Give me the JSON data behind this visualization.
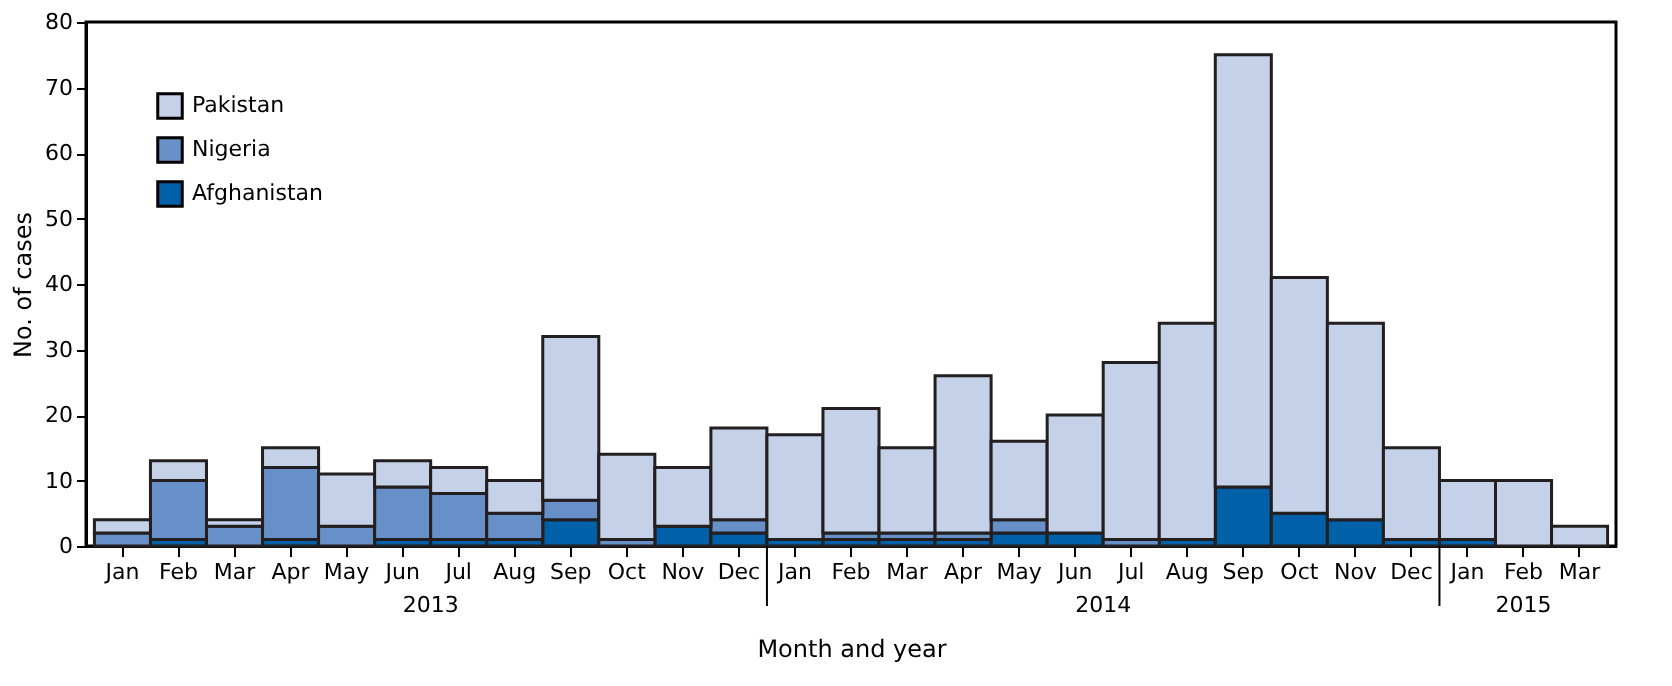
{
  "chart_data": {
    "type": "bar",
    "stacked": true,
    "xlabel": "Month and year",
    "ylabel": "No. of cases",
    "categories": [
      "Jan",
      "Feb",
      "Mar",
      "Apr",
      "May",
      "Jun",
      "Jul",
      "Aug",
      "Sep",
      "Oct",
      "Nov",
      "Dec",
      "Jan",
      "Feb",
      "Mar",
      "Apr",
      "May",
      "Jun",
      "Jul",
      "Aug",
      "Sep",
      "Oct",
      "Nov",
      "Dec",
      "Jan",
      "Feb",
      "Mar"
    ],
    "series": [
      {
        "name": "Afghanistan",
        "color": "#0060a8",
        "values": [
          0,
          1,
          0,
          1,
          0,
          1,
          1,
          1,
          4,
          0,
          3,
          2,
          1,
          1,
          1,
          1,
          2,
          2,
          0,
          1,
          9,
          5,
          4,
          1,
          1,
          0,
          0
        ]
      },
      {
        "name": "Nigeria",
        "color": "#6890c8",
        "values": [
          2,
          9,
          3,
          11,
          3,
          8,
          7,
          4,
          3,
          1,
          0,
          2,
          0,
          1,
          1,
          1,
          2,
          0,
          1,
          0,
          0,
          0,
          0,
          0,
          0,
          0,
          0
        ]
      },
      {
        "name": "Pakistan",
        "color": "#c5d1e8",
        "values": [
          2,
          3,
          1,
          3,
          8,
          4,
          4,
          5,
          25,
          13,
          9,
          14,
          16,
          19,
          13,
          24,
          12,
          18,
          27,
          33,
          66,
          36,
          30,
          14,
          9,
          10,
          3
        ]
      }
    ],
    "annotations": [
      "2013",
      "2014",
      "2015"
    ],
    "ylim": [
      0,
      80
    ],
    "yticks": [
      0,
      10,
      20,
      30,
      40,
      50,
      60,
      70,
      80
    ],
    "grid": false,
    "legend": "top left"
  }
}
